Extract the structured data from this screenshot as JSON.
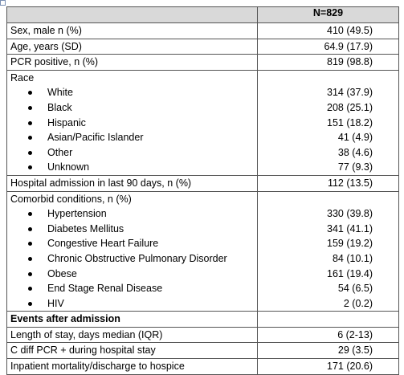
{
  "table": {
    "header": "N=829",
    "rows": [
      {
        "label": "Sex, male n (%)",
        "value": "410 (49.5)"
      },
      {
        "label": "Age, years (SD)",
        "value": "64.9 (17.9)"
      },
      {
        "label": "PCR positive, n (%)",
        "value": "819 (98.8)"
      },
      {
        "label": "Race",
        "items": [
          {
            "label": "White",
            "value": "314 (37.9)"
          },
          {
            "label": "Black",
            "value": "208 (25.1)"
          },
          {
            "label": "Hispanic",
            "value": "151 (18.2)"
          },
          {
            "label": "Asian/Pacific Islander",
            "value": "41 (4.9)"
          },
          {
            "label": "Other",
            "value": "38 (4.6)"
          },
          {
            "label": "Unknown",
            "value": "77 (9.3)"
          }
        ]
      },
      {
        "label": "Hospital admission in last 90 days, n (%)",
        "value": "112 (13.5)"
      },
      {
        "label": "Comorbid conditions, n (%)",
        "items": [
          {
            "label": "Hypertension",
            "value": "330 (39.8)"
          },
          {
            "label": "Diabetes Mellitus",
            "value": "341 (41.1)"
          },
          {
            "label": "Congestive Heart Failure",
            "value": "159 (19.2)"
          },
          {
            "label": "Chronic Obstructive Pulmonary Disorder",
            "value": "84 (10.1)"
          },
          {
            "label": "Obese",
            "value": "161 (19.4)"
          },
          {
            "label": "End Stage Renal Disease",
            "value": "54 (6.5)"
          },
          {
            "label": "HIV",
            "value": "2 (0.2)"
          }
        ]
      },
      {
        "label": "Events after admission",
        "bold": true
      },
      {
        "label": "Length of stay, days median (IQR)",
        "value": "6 (2-13)"
      },
      {
        "label": "C diff PCR + during hospital stay",
        "value": "29 (3.5)"
      },
      {
        "label": "Inpatient mortality/discharge to hospice",
        "value": "171 (20.6)"
      }
    ]
  }
}
